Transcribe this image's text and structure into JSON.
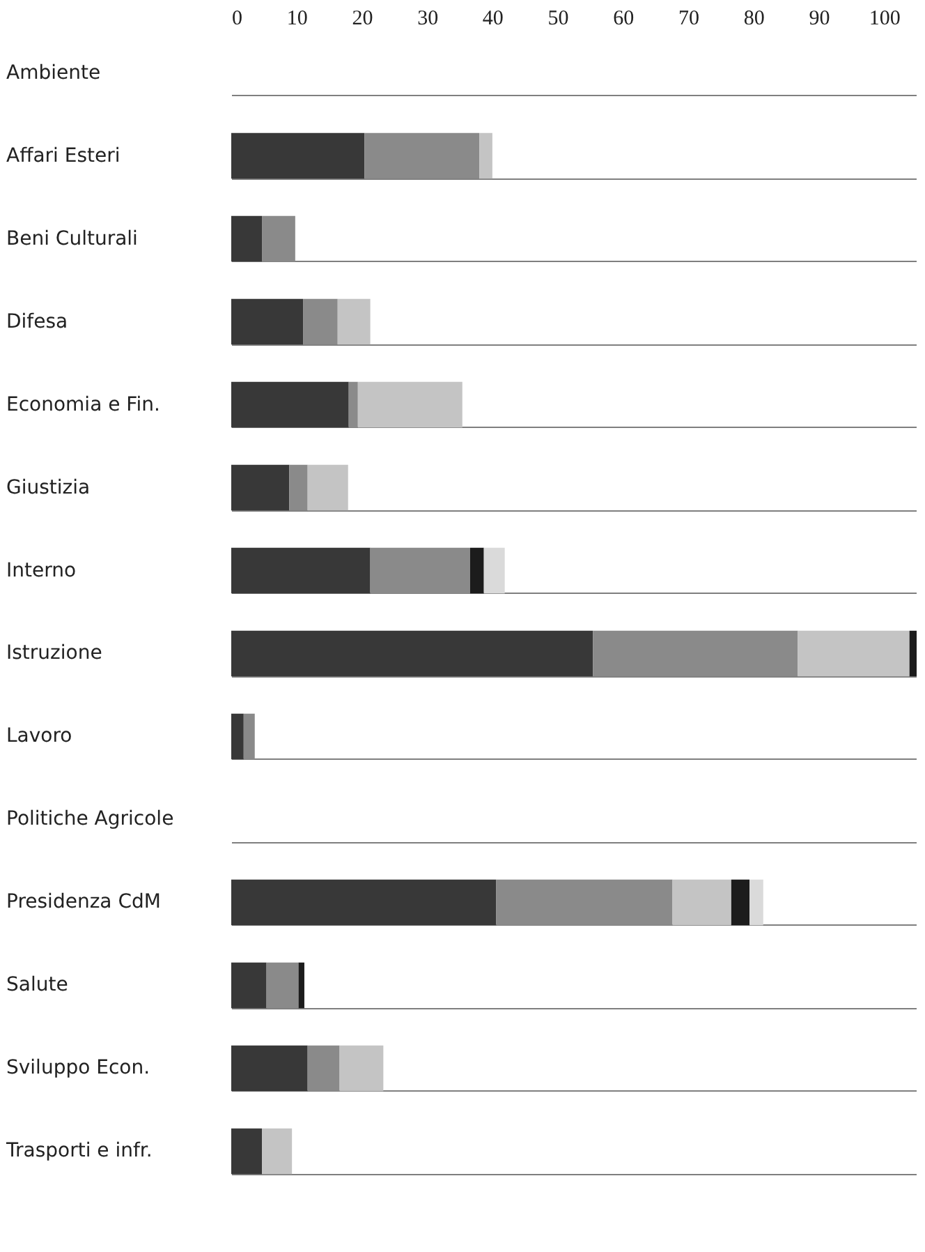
{
  "chart_data": {
    "type": "bar",
    "orientation": "horizontal",
    "stacked": true,
    "grid": "y",
    "legend": false,
    "categories": [
      "Ambiente",
      "Affari Esteri",
      "Beni Culturali",
      "Difesa",
      "Economia e Fin.",
      "Giustizia",
      "Interno",
      "Istruzione",
      "Lavoro",
      "Politiche Agricole",
      "Presidenza CdM",
      "Salute",
      "Sviluppo Econ.",
      "Trasporti e infr."
    ],
    "series": [
      {
        "color": "#383838",
        "values": [
          null,
          20.4,
          4.7,
          11.0,
          18.0,
          8.9,
          21.3,
          55.4,
          1.9,
          null,
          40.6,
          5.4,
          11.7,
          4.7
        ]
      },
      {
        "color": "#8a8a8a",
        "values": [
          null,
          17.6,
          5.1,
          5.3,
          1.4,
          2.8,
          15.3,
          31.4,
          1.7,
          null,
          27.0,
          4.9,
          4.9,
          null
        ]
      },
      {
        "color": "#c4c4c4",
        "values": [
          null,
          2.0,
          null,
          5.0,
          16.0,
          6.2,
          null,
          17.1,
          null,
          null,
          9.0,
          null,
          6.7,
          4.6
        ]
      },
      {
        "color": "#1c1c1c",
        "values": [
          null,
          null,
          null,
          null,
          null,
          null,
          2.1,
          1.1,
          null,
          null,
          2.8,
          0.9,
          null,
          null
        ]
      },
      {
        "color": "#dadada",
        "values": [
          null,
          null,
          null,
          null,
          null,
          null,
          3.2,
          null,
          null,
          null,
          2.1,
          null,
          null,
          null
        ]
      }
    ],
    "xlim": [
      0,
      105
    ],
    "xticks": [
      0,
      10,
      20,
      30,
      40,
      50,
      60,
      70,
      80,
      90,
      100
    ]
  }
}
